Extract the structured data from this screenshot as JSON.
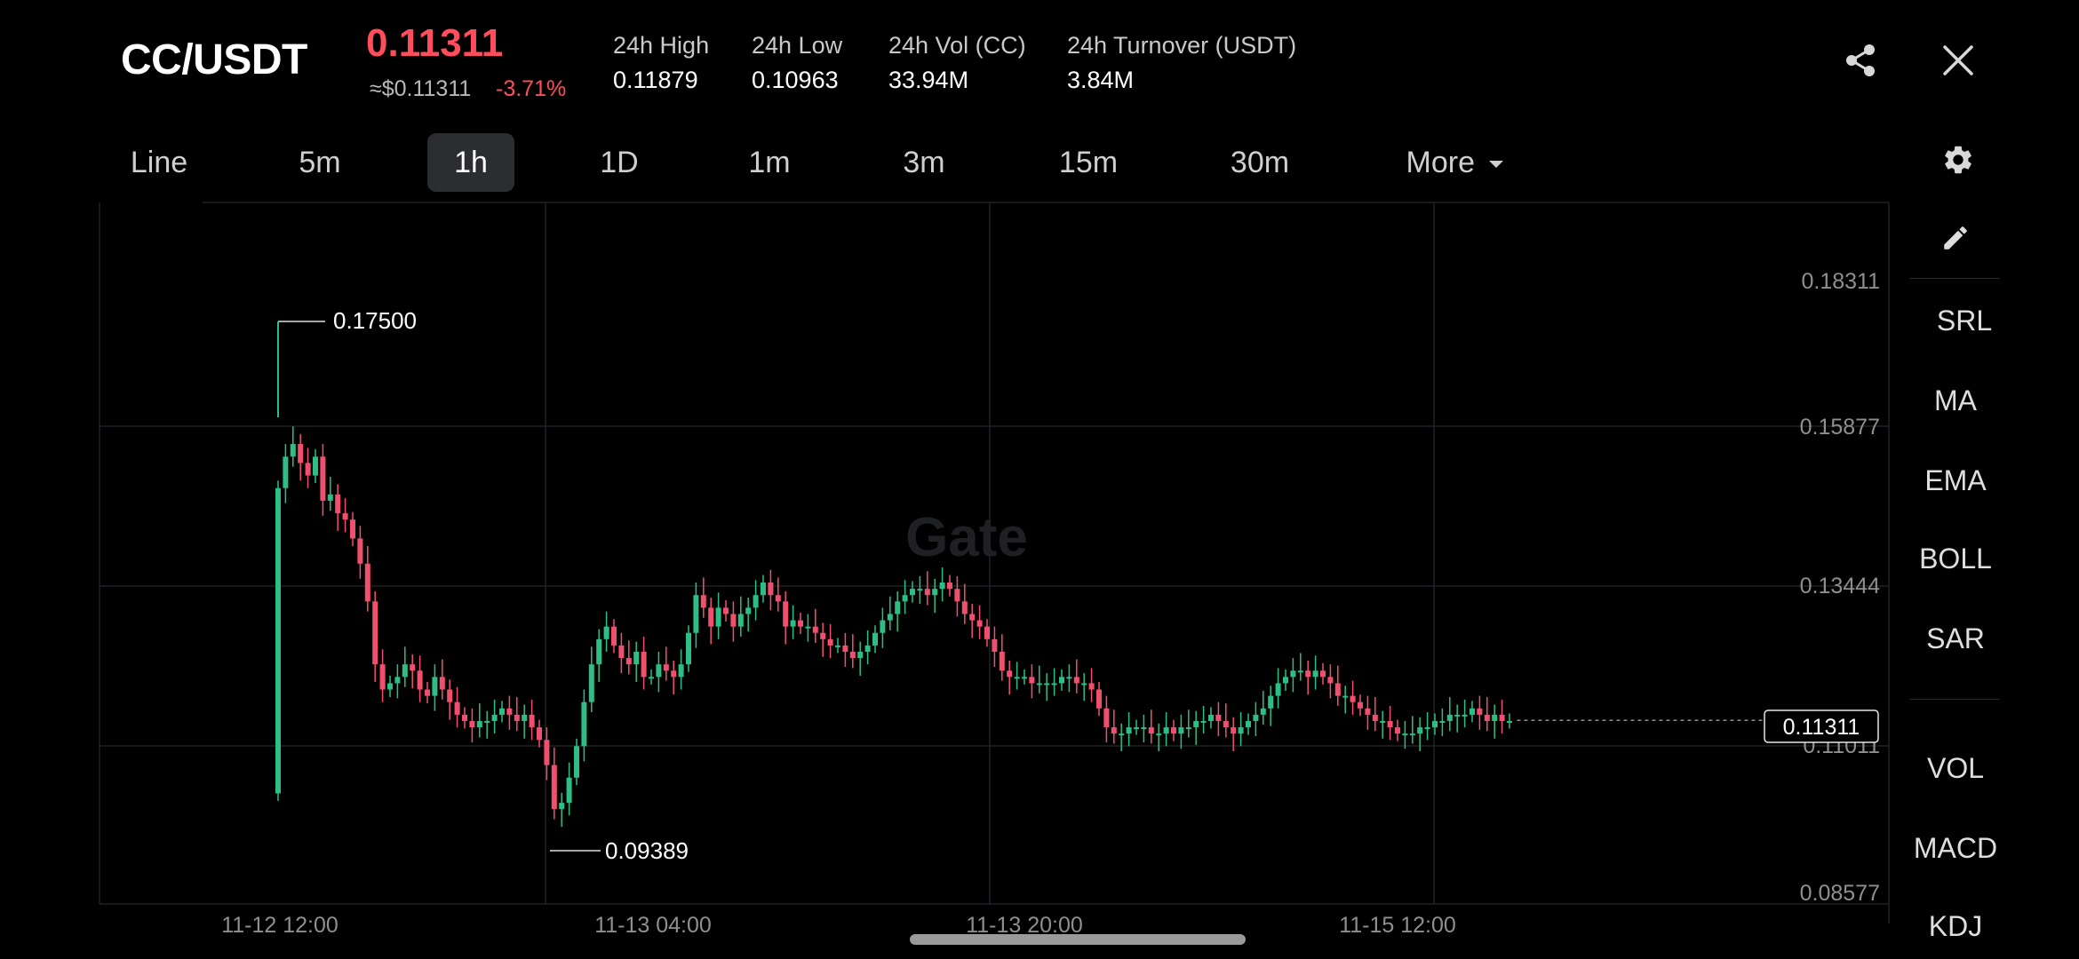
{
  "header": {
    "pair": "CC/USDT",
    "price": "0.11311",
    "usd_price": "≈$0.11311",
    "change": "-3.71%",
    "stats": [
      {
        "label": "24h High",
        "value": "0.11879"
      },
      {
        "label": "24h Low",
        "value": "0.10963"
      },
      {
        "label": "24h Vol (CC)",
        "value": "33.94M"
      },
      {
        "label": "24h Turnover (USDT)",
        "value": "3.84M"
      }
    ],
    "icons": [
      "share-icon",
      "close-icon"
    ]
  },
  "tabs": [
    {
      "label": "Line"
    },
    {
      "label": "5m"
    },
    {
      "label": "1h",
      "active": true
    },
    {
      "label": "1D"
    },
    {
      "label": "1m"
    },
    {
      "label": "3m"
    },
    {
      "label": "15m"
    },
    {
      "label": "30m"
    },
    {
      "label": "More"
    }
  ],
  "chart": {
    "y_axis_labels": [
      "0.18311",
      "0.15877",
      "0.13444",
      "0.11011",
      "0.08577"
    ],
    "x_axis_labels": [
      "11-12 12:00",
      "11-13 04:00",
      "11-13 20:00",
      "11-15 12:00"
    ],
    "high_marker": "0.17500",
    "low_marker": "0.09389",
    "current_price_label": "0.11311",
    "watermark": "Gate",
    "colors": {
      "up": "#2ebd85",
      "down": "#f0506e"
    }
  },
  "sidebar": {
    "items": [
      "SRL",
      "MA",
      "EMA",
      "BOLL",
      "SAR",
      "VOL",
      "MACD",
      "KDJ"
    ],
    "icons": [
      "edit-icon"
    ]
  },
  "chart_data": {
    "type": "candlestick",
    "close": [
      0.15,
      0.155,
      0.157,
      0.154,
      0.152,
      0.155,
      0.148,
      0.149,
      0.146,
      0.145,
      0.142,
      0.138,
      0.132,
      0.122,
      0.118,
      0.119,
      0.12,
      0.122,
      0.121,
      0.118,
      0.117,
      0.12,
      0.118,
      0.116,
      0.114,
      0.113,
      0.112,
      0.113,
      0.113,
      0.114,
      0.115,
      0.114,
      0.113,
      0.114,
      0.112,
      0.11,
      0.106,
      0.099,
      0.1,
      0.104,
      0.109,
      0.116,
      0.122,
      0.126,
      0.128,
      0.125,
      0.123,
      0.122,
      0.124,
      0.12,
      0.12,
      0.122,
      0.121,
      0.12,
      0.122,
      0.127,
      0.133,
      0.131,
      0.128,
      0.131,
      0.13,
      0.128,
      0.13,
      0.131,
      0.133,
      0.135,
      0.133,
      0.132,
      0.128,
      0.129,
      0.128,
      0.128,
      0.127,
      0.126,
      0.125,
      0.125,
      0.124,
      0.123,
      0.124,
      0.125,
      0.127,
      0.129,
      0.13,
      0.132,
      0.133,
      0.134,
      0.134,
      0.133,
      0.134,
      0.135,
      0.134,
      0.132,
      0.13,
      0.129,
      0.128,
      0.126,
      0.124,
      0.121,
      0.12,
      0.12,
      0.12,
      0.119,
      0.119,
      0.119,
      0.119,
      0.12,
      0.12,
      0.119,
      0.119,
      0.118,
      0.115,
      0.112,
      0.111,
      0.111,
      0.112,
      0.112,
      0.112,
      0.111,
      0.111,
      0.112,
      0.111,
      0.112,
      0.112,
      0.113,
      0.113,
      0.114,
      0.113,
      0.112,
      0.111,
      0.112,
      0.113,
      0.114,
      0.115,
      0.117,
      0.119,
      0.12,
      0.121,
      0.121,
      0.12,
      0.121,
      0.12,
      0.119,
      0.117,
      0.117,
      0.116,
      0.115,
      0.114,
      0.113,
      0.113,
      0.112,
      0.111,
      0.111,
      0.111,
      0.112,
      0.112,
      0.113,
      0.113,
      0.114,
      0.114,
      0.114,
      0.115,
      0.114,
      0.113,
      0.114,
      0.113,
      0.113
    ]
  }
}
